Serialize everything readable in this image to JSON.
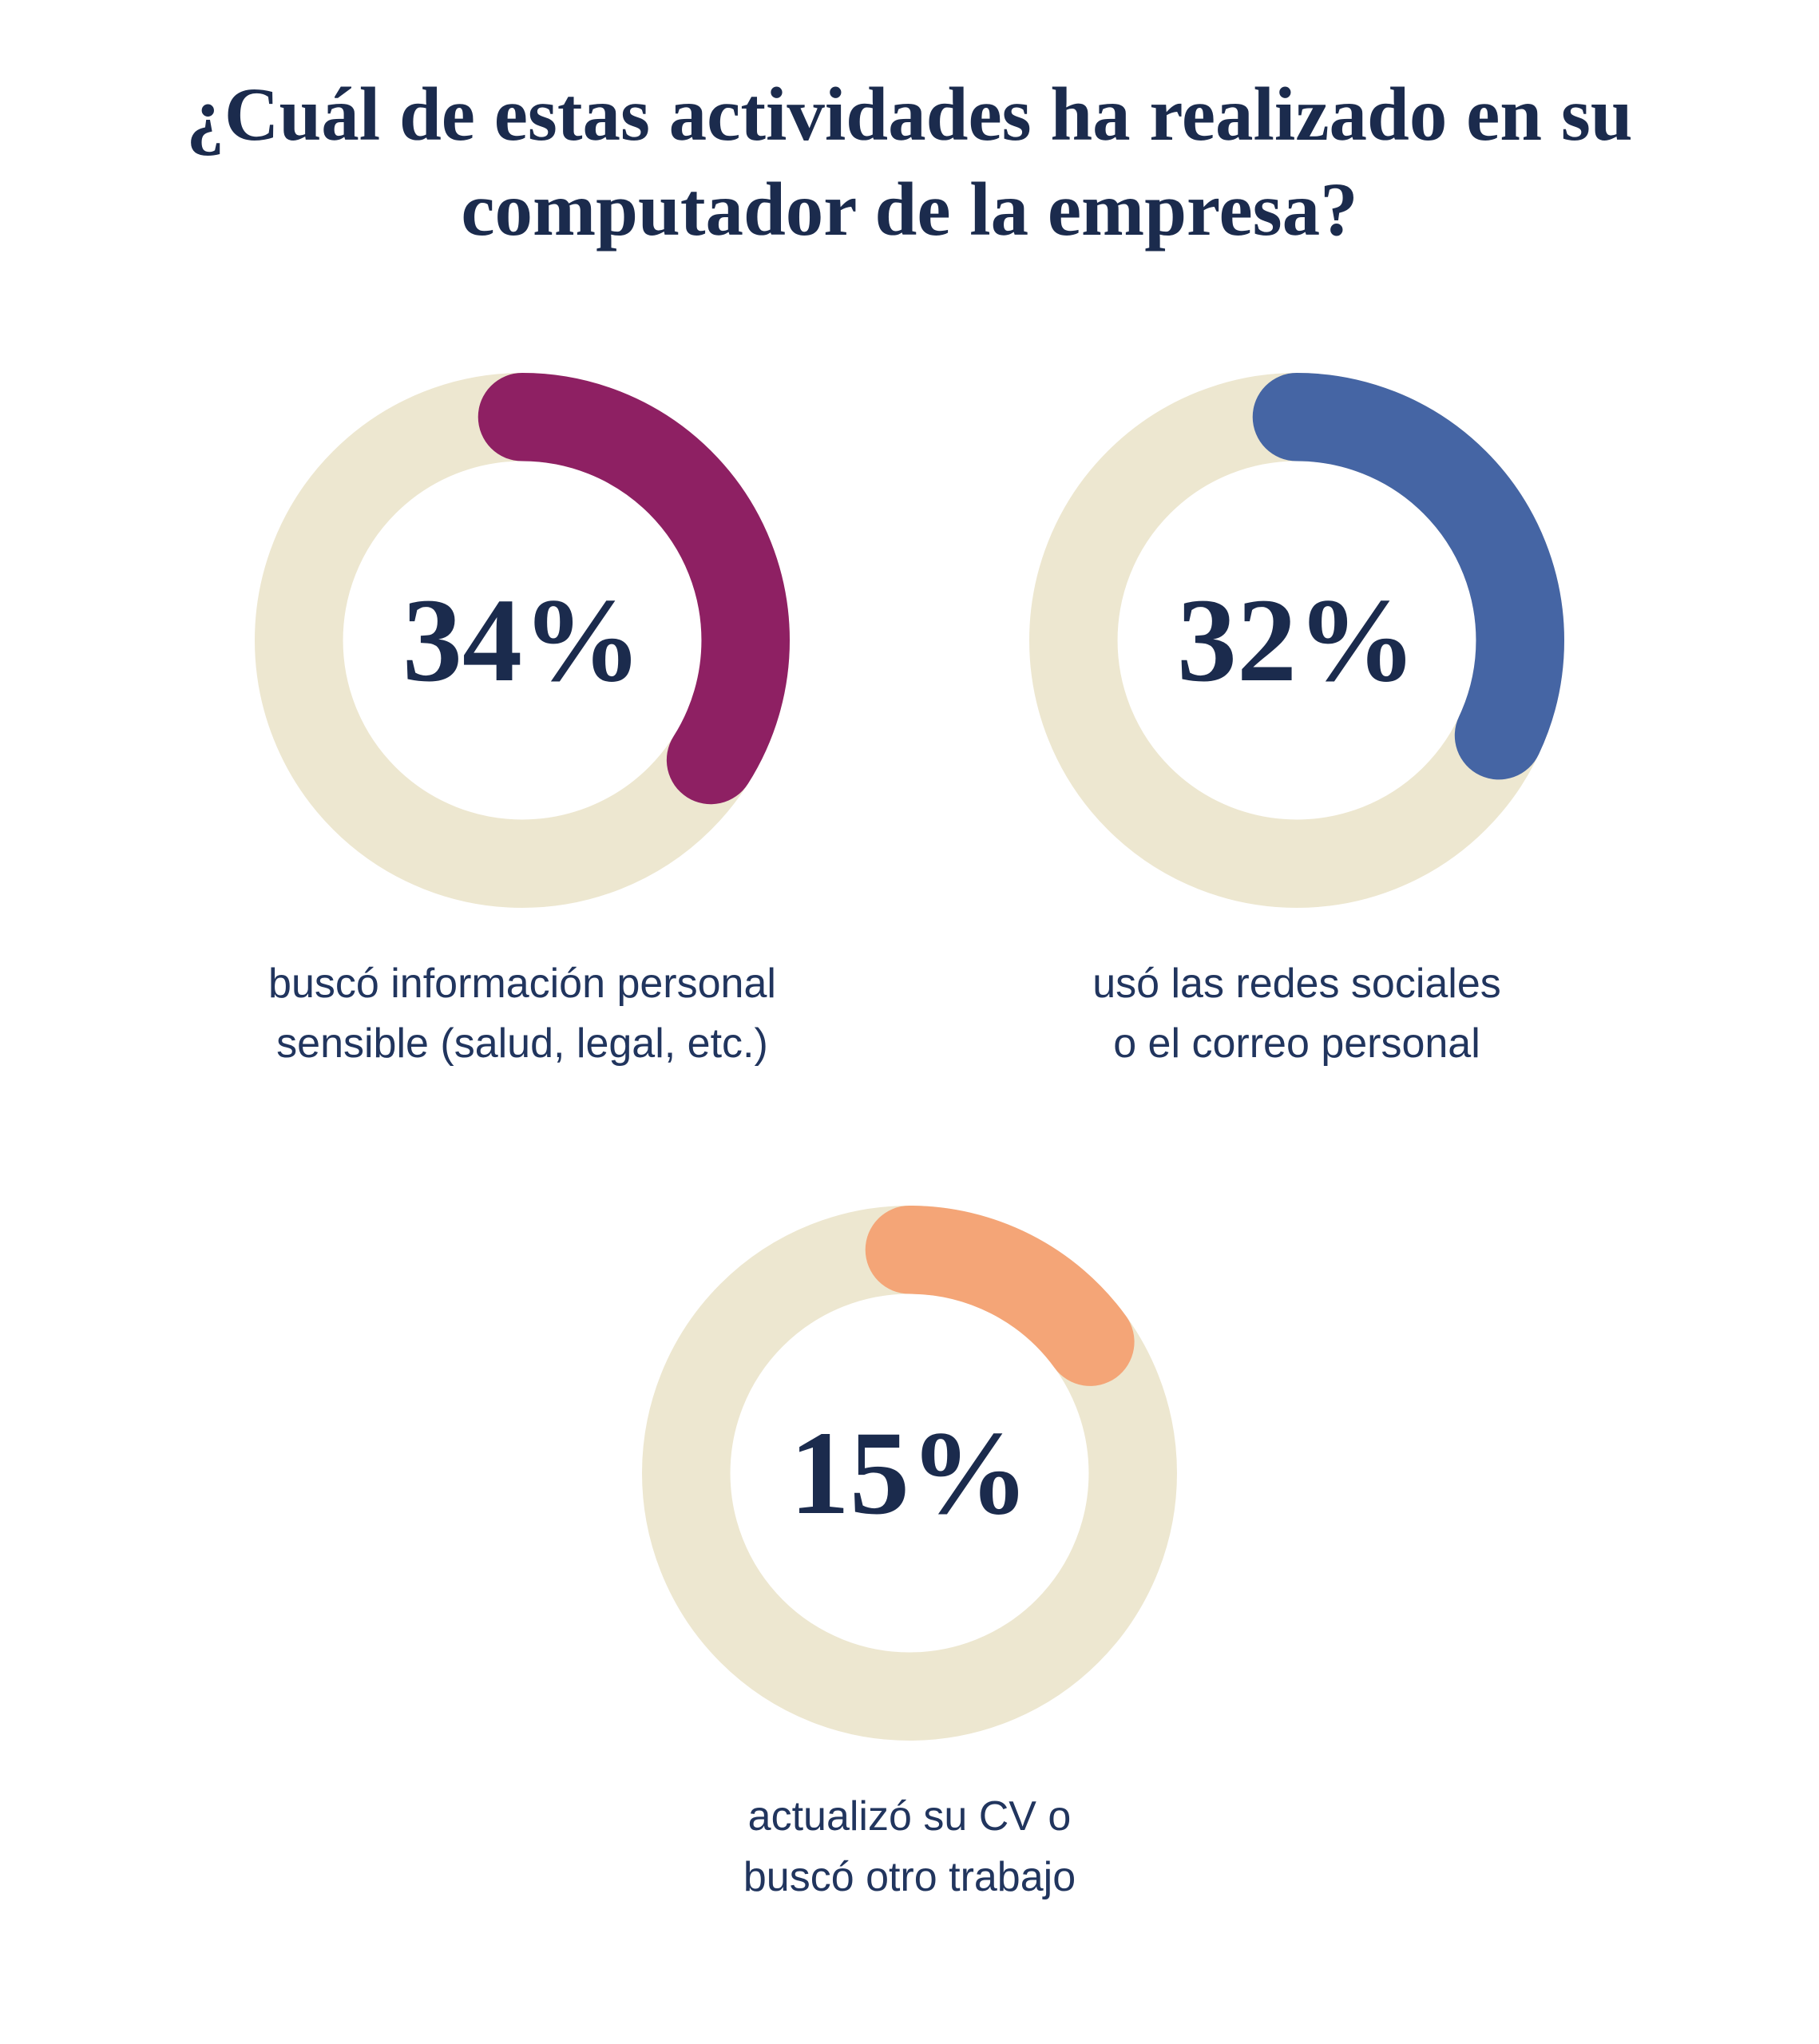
{
  "title": "¿Cuál de estas actividades ha realizado en su computador de la empresa?",
  "colors": {
    "background": "#ffffff",
    "text": "#1b2b4d",
    "caption_text": "#21355e",
    "ring_track": "#ede7d0"
  },
  "chart_data": {
    "type": "donut",
    "unit": "%",
    "legend_position": "below-each",
    "charts": [
      {
        "value": 34,
        "display": "34%",
        "color": "#8e2063",
        "label": "buscó información personal sensible (salud, legal, etc.)",
        "label_lines": [
          "buscó información personal",
          "sensible (salud, legal, etc.)"
        ]
      },
      {
        "value": 32,
        "display": "32%",
        "color": "#4565a4",
        "label": "usó las redes sociales o el correo personal",
        "label_lines": [
          "usó las redes sociales",
          "o el correo personal"
        ]
      },
      {
        "value": 15,
        "display": "15%",
        "color": "#f4a577",
        "label": "actualizó su CV o buscó otro trabajo",
        "label_lines": [
          "actualizó su CV o",
          "buscó otro trabajo"
        ]
      }
    ]
  }
}
